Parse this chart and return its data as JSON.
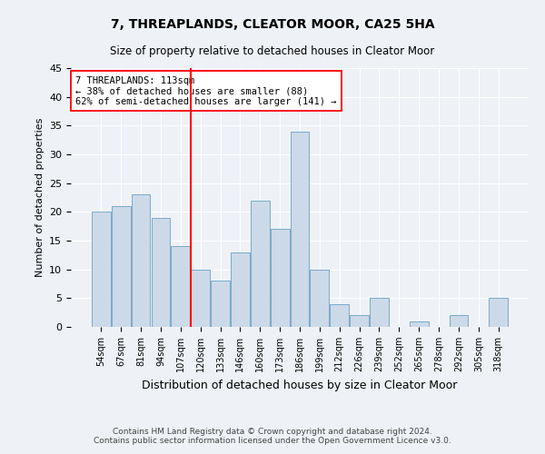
{
  "title": "7, THREAPLANDS, CLEATOR MOOR, CA25 5HA",
  "subtitle": "Size of property relative to detached houses in Cleator Moor",
  "xlabel": "Distribution of detached houses by size in Cleator Moor",
  "ylabel": "Number of detached properties",
  "categories": [
    "54sqm",
    "67sqm",
    "81sqm",
    "94sqm",
    "107sqm",
    "120sqm",
    "133sqm",
    "146sqm",
    "160sqm",
    "173sqm",
    "186sqm",
    "199sqm",
    "212sqm",
    "226sqm",
    "239sqm",
    "252sqm",
    "265sqm",
    "278sqm",
    "292sqm",
    "305sqm",
    "318sqm"
  ],
  "values": [
    20,
    21,
    23,
    19,
    14,
    10,
    8,
    13,
    22,
    17,
    34,
    10,
    4,
    2,
    5,
    0,
    1,
    0,
    2,
    0,
    5
  ],
  "bar_color": "#ccd9e8",
  "bar_edge_color": "#7aaac8",
  "vline_x": 4.5,
  "vline_color": "red",
  "annotation_text": "7 THREAPLANDS: 113sqm\n← 38% of detached houses are smaller (88)\n62% of semi-detached houses are larger (141) →",
  "annotation_box_color": "white",
  "annotation_box_edge": "red",
  "ylim": [
    0,
    45
  ],
  "yticks": [
    0,
    5,
    10,
    15,
    20,
    25,
    30,
    35,
    40,
    45
  ],
  "footer1": "Contains HM Land Registry data © Crown copyright and database right 2024.",
  "footer2": "Contains public sector information licensed under the Open Government Licence v3.0.",
  "bg_color": "#eef2f7",
  "plot_bg_color": "#eef2f7"
}
